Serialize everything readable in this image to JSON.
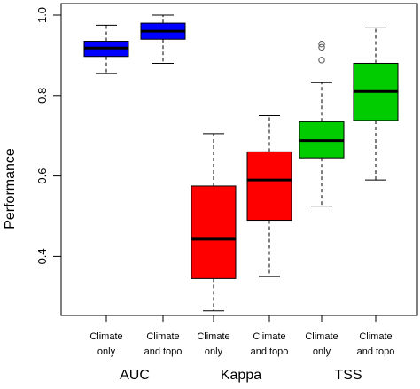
{
  "chart_data": {
    "type": "boxplot",
    "ylabel": "Performance",
    "ylim": [
      0.3,
      1.03
    ],
    "yticks": [
      0.4,
      0.6,
      0.8,
      1.0
    ],
    "yticklabels": [
      "0.4",
      "0.6",
      "0.8",
      "1.0"
    ],
    "grid": false,
    "legend": "none",
    "boxes": [
      {
        "group": "AUC",
        "label_lines": [
          "Climate",
          "only"
        ],
        "color": "#0000ff",
        "whisker_low": 0.855,
        "q1": 0.897,
        "median": 0.918,
        "q3": 0.935,
        "whisker_high": 0.975,
        "outliers": []
      },
      {
        "group": "AUC",
        "label_lines": [
          "Climate",
          "and topo"
        ],
        "color": "#0000ff",
        "whisker_low": 0.88,
        "q1": 0.94,
        "median": 0.96,
        "q3": 0.98,
        "whisker_high": 1.0,
        "outliers": []
      },
      {
        "group": "Kappa",
        "label_lines": [
          "Climate",
          "only"
        ],
        "color": "#ff0000",
        "whisker_low": 0.265,
        "q1": 0.345,
        "median": 0.443,
        "q3": 0.575,
        "whisker_high": 0.705,
        "outliers": []
      },
      {
        "group": "Kappa",
        "label_lines": [
          "Climate",
          "and topo"
        ],
        "color": "#ff0000",
        "whisker_low": 0.35,
        "q1": 0.49,
        "median": 0.59,
        "q3": 0.66,
        "whisker_high": 0.75,
        "outliers": []
      },
      {
        "group": "TSS",
        "label_lines": [
          "Climate",
          "only"
        ],
        "color": "#00cc00",
        "whisker_low": 0.525,
        "q1": 0.645,
        "median": 0.688,
        "q3": 0.735,
        "whisker_high": 0.832,
        "outliers": [
          0.888,
          0.92,
          0.928
        ]
      },
      {
        "group": "TSS",
        "label_lines": [
          "Climate",
          "and topo"
        ],
        "color": "#00cc00",
        "whisker_low": 0.59,
        "q1": 0.738,
        "median": 0.81,
        "q3": 0.88,
        "whisker_high": 0.97,
        "outliers": []
      }
    ],
    "groups": [
      "AUC",
      "Kappa",
      "TSS"
    ]
  }
}
